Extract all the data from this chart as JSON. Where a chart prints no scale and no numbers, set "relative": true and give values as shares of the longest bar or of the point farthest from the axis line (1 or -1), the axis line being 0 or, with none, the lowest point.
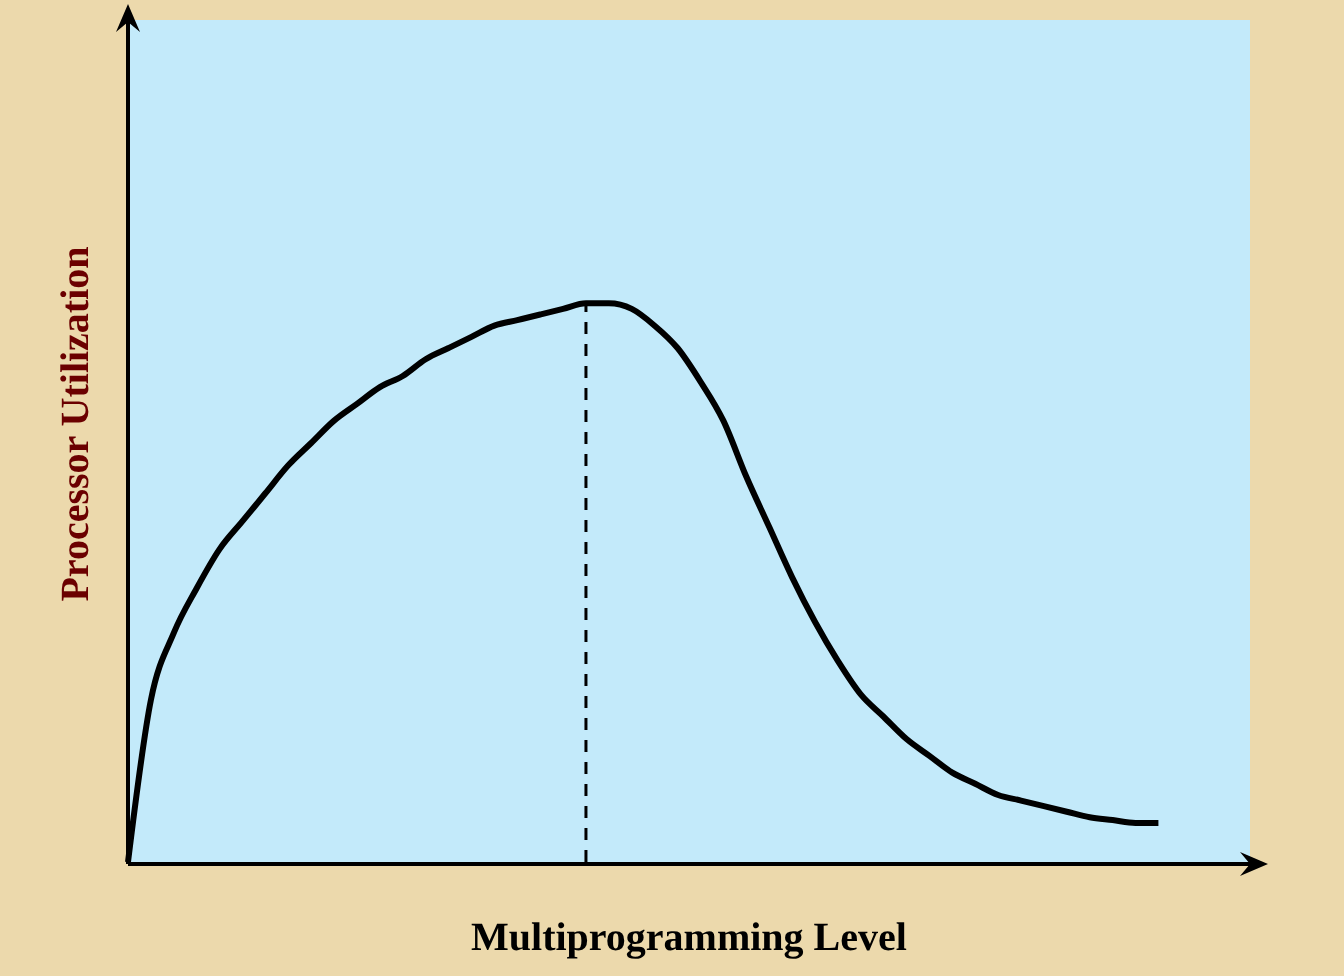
{
  "chart_data": {
    "type": "line",
    "relative": true,
    "xlabel": "Multiprogramming Level",
    "ylabel": "Processor Utilization",
    "marker": "none",
    "line_style": "solid",
    "categories": [
      null,
      null,
      null,
      null,
      null,
      null,
      null,
      null,
      null,
      null,
      null,
      null,
      null,
      null,
      null,
      null,
      null,
      null,
      null,
      null,
      null,
      null,
      null,
      null,
      null,
      null,
      null,
      null,
      null,
      null,
      null,
      null,
      null,
      null,
      null,
      null,
      null,
      null,
      null,
      null,
      null,
      null,
      null,
      null,
      null,
      null,
      null,
      null,
      null,
      null
    ],
    "series": [
      {
        "color": "#000000",
        "values": [
          0,
          0.29,
          0.41,
          0.49,
          0.56,
          0.61,
          0.66,
          0.71,
          0.75,
          0.79,
          0.82,
          0.85,
          0.87,
          0.9,
          0.92,
          0.94,
          0.96,
          0.97,
          0.98,
          0.99,
          1,
          1,
          0.99,
          0.96,
          0.92,
          0.86,
          0.79,
          0.69,
          0.6,
          0.51,
          0.43,
          0.36,
          0.3,
          0.26,
          0.22,
          0.19,
          0.16,
          0.14,
          0.12,
          0.11,
          0.1,
          0.09,
          0.08,
          0.075,
          0.07,
          0.07,
          null,
          null,
          null,
          null
        ]
      }
    ]
  }
}
